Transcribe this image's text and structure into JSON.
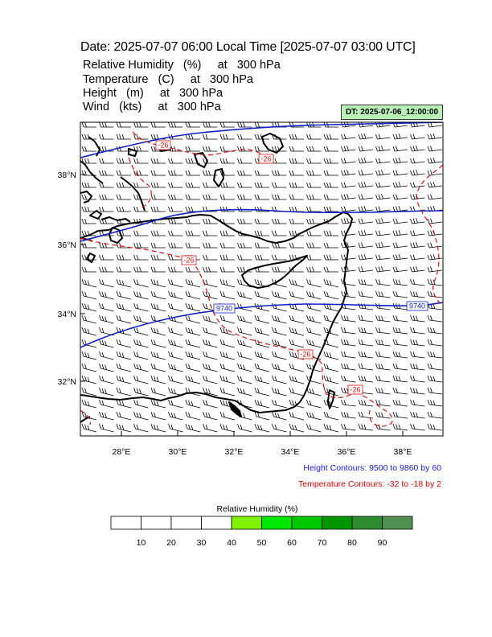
{
  "header": {
    "title": "Date: 2025-07-07  06:00 Local Time [2025-07-07  03:00 UTC]",
    "variables": [
      "Relative Humidity   (%)     at   300 hPa",
      "Temperature   (C)     at   300 hPa",
      "Height   (m)     at   300 hPa",
      "Wind   (kts)     at   300 hPa"
    ],
    "dt_badge": "DT: 2025-07-06_12:00:00"
  },
  "map": {
    "lat_labels": [
      "38°N",
      "36°N",
      "34°N",
      "32°N"
    ],
    "lon_labels": [
      "28°E",
      "30°E",
      "32°E",
      "34°E",
      "36°E",
      "38°E"
    ],
    "height_contour_labels": [
      "9740",
      "9740"
    ],
    "temperature_contour_labels": [
      "-26",
      "-26",
      "-26",
      "-26",
      "-26"
    ],
    "colors": {
      "coast": "#000000",
      "height_contour": "#1020c8",
      "temperature_contour": "#e01010",
      "wind_barb": "#000000"
    }
  },
  "legend": {
    "height_note": "Height Contours: 9500 to 9860 by 60",
    "temperature_note": "Temperature Contours: -32 to -18 by 2",
    "height_note_color": "#1a1ae0",
    "temperature_note_color": "#e00000",
    "colorbar_title": "Relative Humidity  (%)",
    "colorbar_colors": [
      "#ffffff",
      "#ffffff",
      "#ffffff",
      "#ffffff",
      "#7ff200",
      "#00e800",
      "#00c800",
      "#009600",
      "#2e8b2e",
      "#4f8f4f"
    ],
    "colorbar_ticks": [
      "10",
      "20",
      "30",
      "40",
      "50",
      "60",
      "70",
      "80",
      "90"
    ]
  }
}
